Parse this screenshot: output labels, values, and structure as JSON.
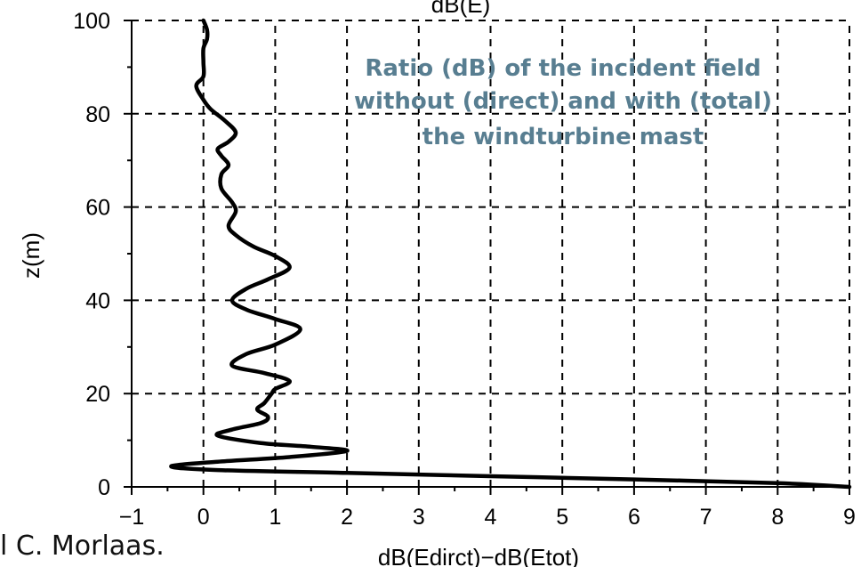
{
  "chart_data": {
    "type": "line",
    "top_label": "dB(E)",
    "xlabel": "dB(Edirct)−dB(Etot)",
    "ylabel": "z(m)",
    "annotation": [
      "Ratio (dB) of the incident field",
      "without (direct) and with (total)",
      "the windturbine mast"
    ],
    "xlim": [
      -1,
      9
    ],
    "ylim": [
      0,
      100
    ],
    "x_ticks": [
      "−1",
      "0",
      "1",
      "2",
      "3",
      "4",
      "5",
      "6",
      "7",
      "8",
      "9"
    ],
    "y_ticks": [
      "0",
      "20",
      "40",
      "60",
      "80",
      "100"
    ],
    "grid": true,
    "line_color": "#000000",
    "series": [
      {
        "points": [
          [
            9.0,
            0.0
          ],
          [
            8.0,
            0.8
          ],
          [
            6.0,
            1.6
          ],
          [
            4.0,
            2.3
          ],
          [
            2.0,
            3.0
          ],
          [
            0.2,
            3.6
          ],
          [
            -0.45,
            4.4
          ],
          [
            0.2,
            5.4
          ],
          [
            1.2,
            6.4
          ],
          [
            2.0,
            7.7
          ],
          [
            1.5,
            8.6
          ],
          [
            0.8,
            9.4
          ],
          [
            0.2,
            11.0
          ],
          [
            0.4,
            12.3
          ],
          [
            0.8,
            13.7
          ],
          [
            0.9,
            15.0
          ],
          [
            0.75,
            16.6
          ],
          [
            0.85,
            18.0
          ],
          [
            0.95,
            20.0
          ],
          [
            1.0,
            21.0
          ],
          [
            1.2,
            22.7
          ],
          [
            0.85,
            24.4
          ],
          [
            0.4,
            26.0
          ],
          [
            0.6,
            28.5
          ],
          [
            1.0,
            30.5
          ],
          [
            1.35,
            33.8
          ],
          [
            1.0,
            36.0
          ],
          [
            0.6,
            38.0
          ],
          [
            0.4,
            40.0
          ],
          [
            0.6,
            42.5
          ],
          [
            0.9,
            44.5
          ],
          [
            1.2,
            47.0
          ],
          [
            1.0,
            49.5
          ],
          [
            0.7,
            51.5
          ],
          [
            0.45,
            54.0
          ],
          [
            0.35,
            56.0
          ],
          [
            0.45,
            59.0
          ],
          [
            0.4,
            61.0
          ],
          [
            0.25,
            64.0
          ],
          [
            0.25,
            67.0
          ],
          [
            0.35,
            69.0
          ],
          [
            0.25,
            71.0
          ],
          [
            0.2,
            72.5
          ],
          [
            0.35,
            74.0
          ],
          [
            0.45,
            76.0
          ],
          [
            0.3,
            78.5
          ],
          [
            0.1,
            81.0
          ],
          [
            0.0,
            83.0
          ],
          [
            -0.1,
            86.0
          ],
          [
            0.0,
            88.0
          ],
          [
            0.0,
            91.0
          ],
          [
            0.0,
            94.0
          ],
          [
            0.05,
            96.0
          ],
          [
            0.05,
            98.0
          ],
          [
            0.0,
            100.0
          ]
        ]
      }
    ]
  },
  "credit": "l C. Morlaas."
}
